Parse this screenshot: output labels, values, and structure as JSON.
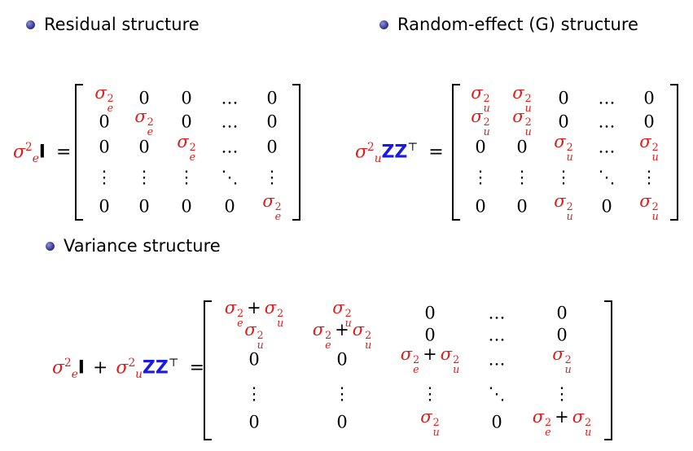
{
  "bullets": {
    "residual": "Residual structure",
    "random": "Random-effect (G) structure",
    "variance": "Variance structure"
  },
  "symbols": {
    "sigma": "σ",
    "sq": "2",
    "e": "e",
    "u": "u",
    "I": "I",
    "ZZ": "ZZ",
    "T": "⊤",
    "eq": "=",
    "plus": "+",
    "zero": "0",
    "hdots": "…",
    "vdots": "⋮",
    "ddots": "⋱"
  },
  "colors": {
    "accent_red": "#e01b1b",
    "matrix_blue": "#1a1ae6",
    "bullet": "#3c3f95"
  },
  "matrices": {
    "residual": [
      [
        "σe²",
        "0",
        "0",
        "…",
        "0"
      ],
      [
        "0",
        "σe²",
        "0",
        "…",
        "0"
      ],
      [
        "0",
        "0",
        "σe²",
        "…",
        "0"
      ],
      [
        "⋮",
        "⋮",
        "⋮",
        "⋱",
        "⋮"
      ],
      [
        "0",
        "0",
        "0",
        "0",
        "σe²"
      ]
    ],
    "random": [
      [
        "σu²",
        "σu²",
        "0",
        "…",
        "0"
      ],
      [
        "σu²",
        "σu²",
        "0",
        "…",
        "0"
      ],
      [
        "0",
        "0",
        "σu²",
        "…",
        "σu²"
      ],
      [
        "⋮",
        "⋮",
        "⋮",
        "⋱",
        "⋮"
      ],
      [
        "0",
        "0",
        "σu²",
        "0",
        "σu²"
      ]
    ],
    "variance": [
      [
        "σe²+σu²",
        "σu²",
        "0",
        "…",
        "0"
      ],
      [
        "σu²",
        "σe²+σu²",
        "0",
        "…",
        "0"
      ],
      [
        "0",
        "0",
        "σe²+σu²",
        "…",
        "σu²"
      ],
      [
        "⋮",
        "⋮",
        "⋮",
        "⋱",
        "⋮"
      ],
      [
        "0",
        "0",
        "σu²",
        "0",
        "σe²+σu²"
      ]
    ]
  }
}
